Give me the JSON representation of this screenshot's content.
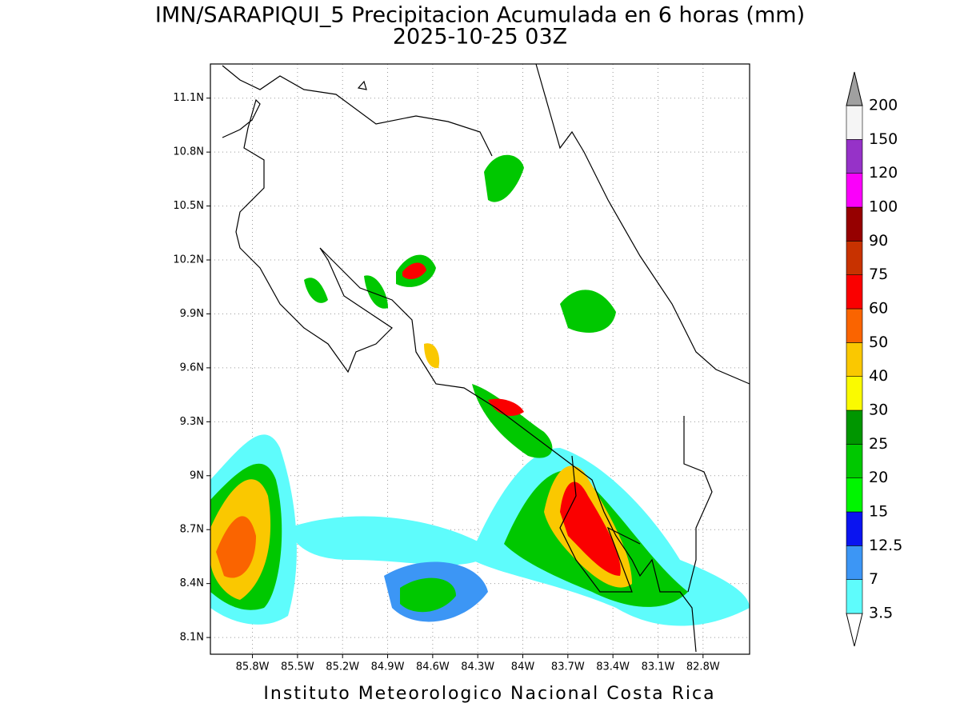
{
  "chart_data": {
    "type": "map",
    "title": "IMN/SARAPIQUI_5 Precipitacion Acumulada en 6 horas (mm)",
    "subtitle": "2025-10-25 03Z",
    "footer": "Instituto Meteorologico Nacional Costa Rica",
    "xlim": [
      -86.08,
      -82.49
    ],
    "ylim": [
      8.007,
      11.29
    ],
    "xticks": [
      {
        "value": -85.8,
        "label": "85.8W"
      },
      {
        "value": -85.5,
        "label": "85.5W"
      },
      {
        "value": -85.2,
        "label": "85.2W"
      },
      {
        "value": -84.9,
        "label": "84.9W"
      },
      {
        "value": -84.6,
        "label": "84.6W"
      },
      {
        "value": -84.3,
        "label": "84.3W"
      },
      {
        "value": -84.0,
        "label": "84W"
      },
      {
        "value": -83.7,
        "label": "83.7W"
      },
      {
        "value": -83.4,
        "label": "83.4W"
      },
      {
        "value": -83.1,
        "label": "83.1W"
      },
      {
        "value": -82.8,
        "label": "82.8W"
      }
    ],
    "yticks": [
      {
        "value": 8.1,
        "label": "8.1N"
      },
      {
        "value": 8.4,
        "label": "8.4N"
      },
      {
        "value": 8.7,
        "label": "8.7N"
      },
      {
        "value": 9.0,
        "label": "9N"
      },
      {
        "value": 9.3,
        "label": "9.3N"
      },
      {
        "value": 9.6,
        "label": "9.6N"
      },
      {
        "value": 9.9,
        "label": "9.9N"
      },
      {
        "value": 10.2,
        "label": "10.2N"
      },
      {
        "value": 10.5,
        "label": "10.5N"
      },
      {
        "value": 10.8,
        "label": "10.8N"
      },
      {
        "value": 11.1,
        "label": "11.1N"
      }
    ],
    "grid": true,
    "colorbar": {
      "levels": [
        3.5,
        7,
        12.5,
        15,
        20,
        25,
        30,
        40,
        50,
        60,
        75,
        90,
        100,
        120,
        150,
        200
      ],
      "colors": [
        "#5efcfc",
        "#3c96f5",
        "#0a14f0",
        "#00f500",
        "#00c800",
        "#009600",
        "#fafa00",
        "#fac800",
        "#fa6400",
        "#fa0000",
        "#c83200",
        "#960000",
        "#fa00fa",
        "#9632c8",
        "#f5f5f5"
      ],
      "under_color": "#ffffff",
      "over_color": "#a0a0a0"
    }
  }
}
